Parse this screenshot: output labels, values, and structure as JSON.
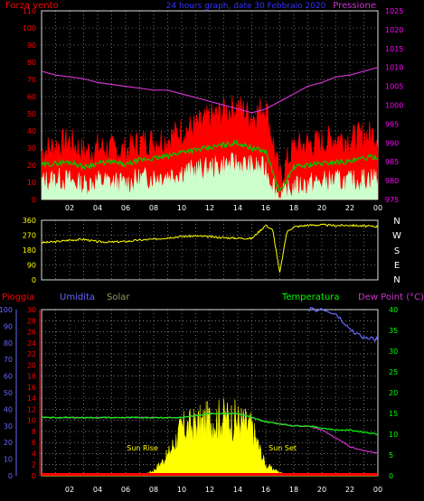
{
  "header": {
    "wind_title": "Forza vento",
    "date_title": "24 hours graph, date 30 Febbraio 2020",
    "pressure_title": "Pressione"
  },
  "colors": {
    "background": "#000000",
    "wind_gust": "#ff0000",
    "wind_avg": "#00cc00",
    "wind_min": "#ccffcc",
    "pressure": "#cc33cc",
    "direction": "#ffff00",
    "rain": "#ff0000",
    "humidity": "#6666ff",
    "solar": "#ffff00",
    "temperature": "#00ff00",
    "dewpoint": "#cc33cc",
    "grid": "#ffffff",
    "right_axis_pressure": "#ff00ff",
    "right_axis_temp": "#00ff00",
    "left_axis_rain": "#ff0000",
    "left_axis_humidity": "#6666ff"
  },
  "chart_data": [
    {
      "type": "line",
      "title": "24 hours graph, date 30 Febbraio 2020",
      "x_ticks": [
        "02",
        "04",
        "06",
        "08",
        "10",
        "12",
        "14",
        "16",
        "18",
        "20",
        "22",
        "00"
      ],
      "ylabel_left": "Forza vento",
      "ylabel_right": "Pressione",
      "ylim_left": [
        0,
        110
      ],
      "ylim_right": [
        975,
        1025
      ],
      "y_ticks_left": [
        0,
        10,
        20,
        30,
        40,
        50,
        60,
        70,
        80,
        90,
        100,
        110
      ],
      "y_ticks_right": [
        975,
        980,
        985,
        990,
        995,
        1000,
        1005,
        1010,
        1015,
        1020,
        1025
      ],
      "grid": true,
      "x_hours": [
        0,
        1,
        2,
        3,
        4,
        5,
        6,
        7,
        8,
        9,
        10,
        11,
        12,
        13,
        14,
        15,
        16,
        17,
        18,
        19,
        20,
        21,
        22,
        23,
        24
      ],
      "series": [
        {
          "name": "wind_gust",
          "axis": "left",
          "kind": "area",
          "values": [
            28,
            31,
            34,
            27,
            30,
            29,
            28,
            33,
            34,
            35,
            40,
            42,
            47,
            51,
            54,
            48,
            55,
            12,
            30,
            32,
            33,
            36,
            35,
            37,
            38
          ]
        },
        {
          "name": "wind_avg",
          "axis": "left",
          "values": [
            20,
            21,
            22,
            19,
            21,
            22,
            20,
            23,
            24,
            25,
            28,
            29,
            30,
            32,
            33,
            30,
            28,
            4,
            19,
            20,
            21,
            22,
            22,
            24,
            25
          ]
        },
        {
          "name": "wind_min",
          "axis": "left",
          "kind": "area",
          "values": [
            10,
            12,
            11,
            8,
            11,
            10,
            9,
            12,
            13,
            14,
            16,
            17,
            18,
            20,
            21,
            19,
            18,
            1,
            7,
            9,
            10,
            11,
            10,
            12,
            13
          ]
        },
        {
          "name": "pressure",
          "axis": "right",
          "values": [
            1009,
            1008,
            1007.5,
            1007,
            1006,
            1005.5,
            1005,
            1004.5,
            1004,
            1004,
            1003,
            1002,
            1001,
            1000,
            999,
            998,
            999,
            1001,
            1003,
            1005,
            1006,
            1007.5,
            1008,
            1009,
            1010
          ]
        }
      ]
    },
    {
      "type": "line",
      "y_ticks_left": [
        0,
        90,
        180,
        270,
        360
      ],
      "ylim": [
        0,
        360
      ],
      "direction_labels": [
        "N",
        "W",
        "S",
        "E",
        "N"
      ],
      "grid": true,
      "x_hours": [
        0,
        1,
        2,
        3,
        4,
        5,
        6,
        7,
        8,
        9,
        10,
        11,
        12,
        13,
        14,
        15,
        16,
        16.5,
        17,
        17.5,
        18,
        19,
        20,
        21,
        22,
        23,
        24
      ],
      "series": [
        {
          "name": "wind_direction",
          "values": [
            225,
            230,
            240,
            245,
            230,
            228,
            232,
            240,
            245,
            255,
            262,
            265,
            260,
            255,
            252,
            250,
            330,
            300,
            40,
            290,
            320,
            330,
            332,
            328,
            330,
            325,
            322
          ]
        }
      ]
    },
    {
      "type": "area",
      "x_ticks": [
        "02",
        "04",
        "06",
        "08",
        "10",
        "12",
        "14",
        "16",
        "18",
        "20",
        "22",
        "00"
      ],
      "legend": [
        "Pioggia",
        "Umidita",
        "Solar",
        "Temperatura",
        "Dew Point (°C)"
      ],
      "y_ticks_humidity": [
        0,
        10,
        20,
        30,
        40,
        50,
        60,
        70,
        80,
        90,
        100
      ],
      "y_ticks_rain": [
        0,
        2,
        4,
        6,
        8,
        10,
        12,
        14,
        16,
        18,
        20,
        22,
        24,
        26,
        28,
        30
      ],
      "y_ticks_temp": [
        0,
        5,
        10,
        15,
        20,
        25,
        30,
        35,
        40
      ],
      "ylim_humidity": [
        0,
        100
      ],
      "ylim_rain": [
        0,
        30
      ],
      "ylim_temp": [
        0,
        40
      ],
      "grid": true,
      "annotations": [
        {
          "label": "Sun Rise",
          "hour": 7.2
        },
        {
          "label": "Sun Set",
          "hour": 17.2
        }
      ],
      "x_hours": [
        0,
        1,
        2,
        3,
        4,
        5,
        6,
        7,
        8,
        9,
        10,
        11,
        12,
        13,
        14,
        15,
        16,
        17,
        18,
        19,
        20,
        21,
        22,
        23,
        24
      ],
      "series": [
        {
          "name": "Pioggia",
          "axis": "rain",
          "values": [
            0,
            0,
            0,
            0,
            0,
            0,
            0,
            0,
            0,
            0,
            0,
            0,
            0,
            0,
            0,
            0,
            0,
            0,
            0,
            0,
            0,
            0,
            0,
            0,
            0
          ]
        },
        {
          "name": "Umidita",
          "axis": "humidity",
          "values": [
            null,
            null,
            null,
            null,
            null,
            null,
            null,
            null,
            null,
            null,
            null,
            null,
            null,
            null,
            null,
            null,
            null,
            null,
            null,
            null,
            100,
            97,
            88,
            83,
            82
          ]
        },
        {
          "name": "Solar",
          "axis": "humidity",
          "kind": "area",
          "values": [
            0,
            0,
            0,
            0,
            0,
            0,
            0,
            0,
            3,
            12,
            28,
            30,
            33,
            34,
            33,
            28,
            6,
            2,
            0,
            0,
            0,
            0,
            0,
            0,
            0
          ]
        },
        {
          "name": "Temperatura",
          "axis": "temp",
          "values": [
            14,
            14,
            14,
            14,
            14,
            14,
            14,
            14,
            14,
            14,
            14,
            14.5,
            15,
            15,
            15,
            14,
            13,
            12.5,
            12,
            12,
            11.5,
            11,
            11,
            10.5,
            10
          ]
        },
        {
          "name": "Dew Point",
          "axis": "temp",
          "values": [
            14,
            14,
            14,
            14,
            14,
            14,
            14,
            14,
            14,
            14,
            14,
            14.5,
            15,
            15,
            15,
            14,
            13,
            12.5,
            12,
            12,
            11,
            9,
            7,
            6,
            5.5
          ]
        }
      ]
    }
  ],
  "bottom": {
    "labels": {
      "rain": "Pioggia",
      "humidity": "Umidita",
      "solar": "Solar",
      "temperature": "Temperatura",
      "dewpoint": "Dew Point (°C)",
      "sunrise": "Sun Rise",
      "sunset": "Sun Set"
    }
  }
}
